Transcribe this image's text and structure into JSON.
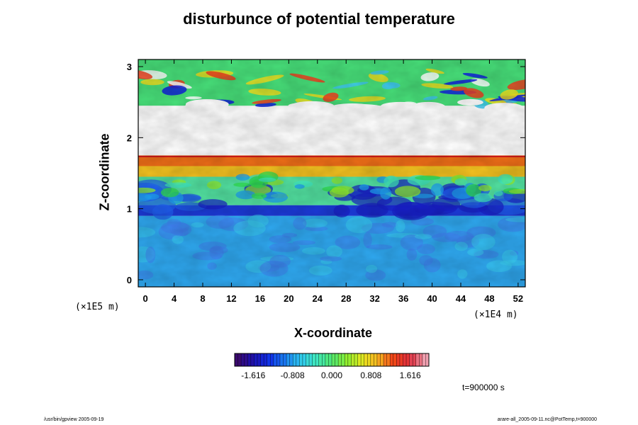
{
  "chart_data": {
    "type": "heatmap",
    "title": "disturbunce of potential temperature",
    "xlabel": "X-coordinate",
    "ylabel": "Z-coordinate",
    "x_unit": "(×1E4 m)",
    "y_unit": "(×1E5 m)",
    "xlim": [
      -1,
      53
    ],
    "ylim": [
      -0.1,
      3.1
    ],
    "x_ticks": [
      "0",
      "4",
      "8",
      "12",
      "16",
      "20",
      "24",
      "28",
      "32",
      "36",
      "40",
      "44",
      "48",
      "52"
    ],
    "y_ticks": [
      "0",
      "1",
      "2",
      "3"
    ],
    "colorbar": {
      "ticks": [
        "-1.616",
        "-0.808",
        "0.000",
        "0.808",
        "1.616"
      ],
      "range": [
        -2.0,
        2.0
      ],
      "colors": [
        "#3a0a6e",
        "#1c10b0",
        "#1030e8",
        "#1a7cf0",
        "#2fc8f0",
        "#40e8c0",
        "#50e870",
        "#90ee30",
        "#e8e820",
        "#f8b020",
        "#f04018",
        "#e03040",
        "#f0a0b0"
      ]
    },
    "bands": [
      {
        "z_range": [
          2.95,
          3.05
        ],
        "value": 0.1
      },
      {
        "z_range": [
          2.45,
          2.95
        ],
        "value": "mixed -0.9 .. 1.5"
      },
      {
        "z_range": [
          1.75,
          2.45
        ],
        "value": "> 2.0 (white)"
      },
      {
        "z_range": [
          1.45,
          1.75
        ],
        "value": 1.4
      },
      {
        "z_range": [
          1.05,
          1.45
        ],
        "value": 0.3
      },
      {
        "z_range": [
          0.9,
          1.05
        ],
        "value": -1.4
      },
      {
        "z_range": [
          -0.1,
          0.9
        ],
        "value": -0.6
      }
    ],
    "time_label": "t=900000 s"
  },
  "footer": {
    "left": "/usr/bin/gpview 2005-09-19",
    "right": "arare-all_2005-09-11.nc@PotTemp,t=900000"
  }
}
